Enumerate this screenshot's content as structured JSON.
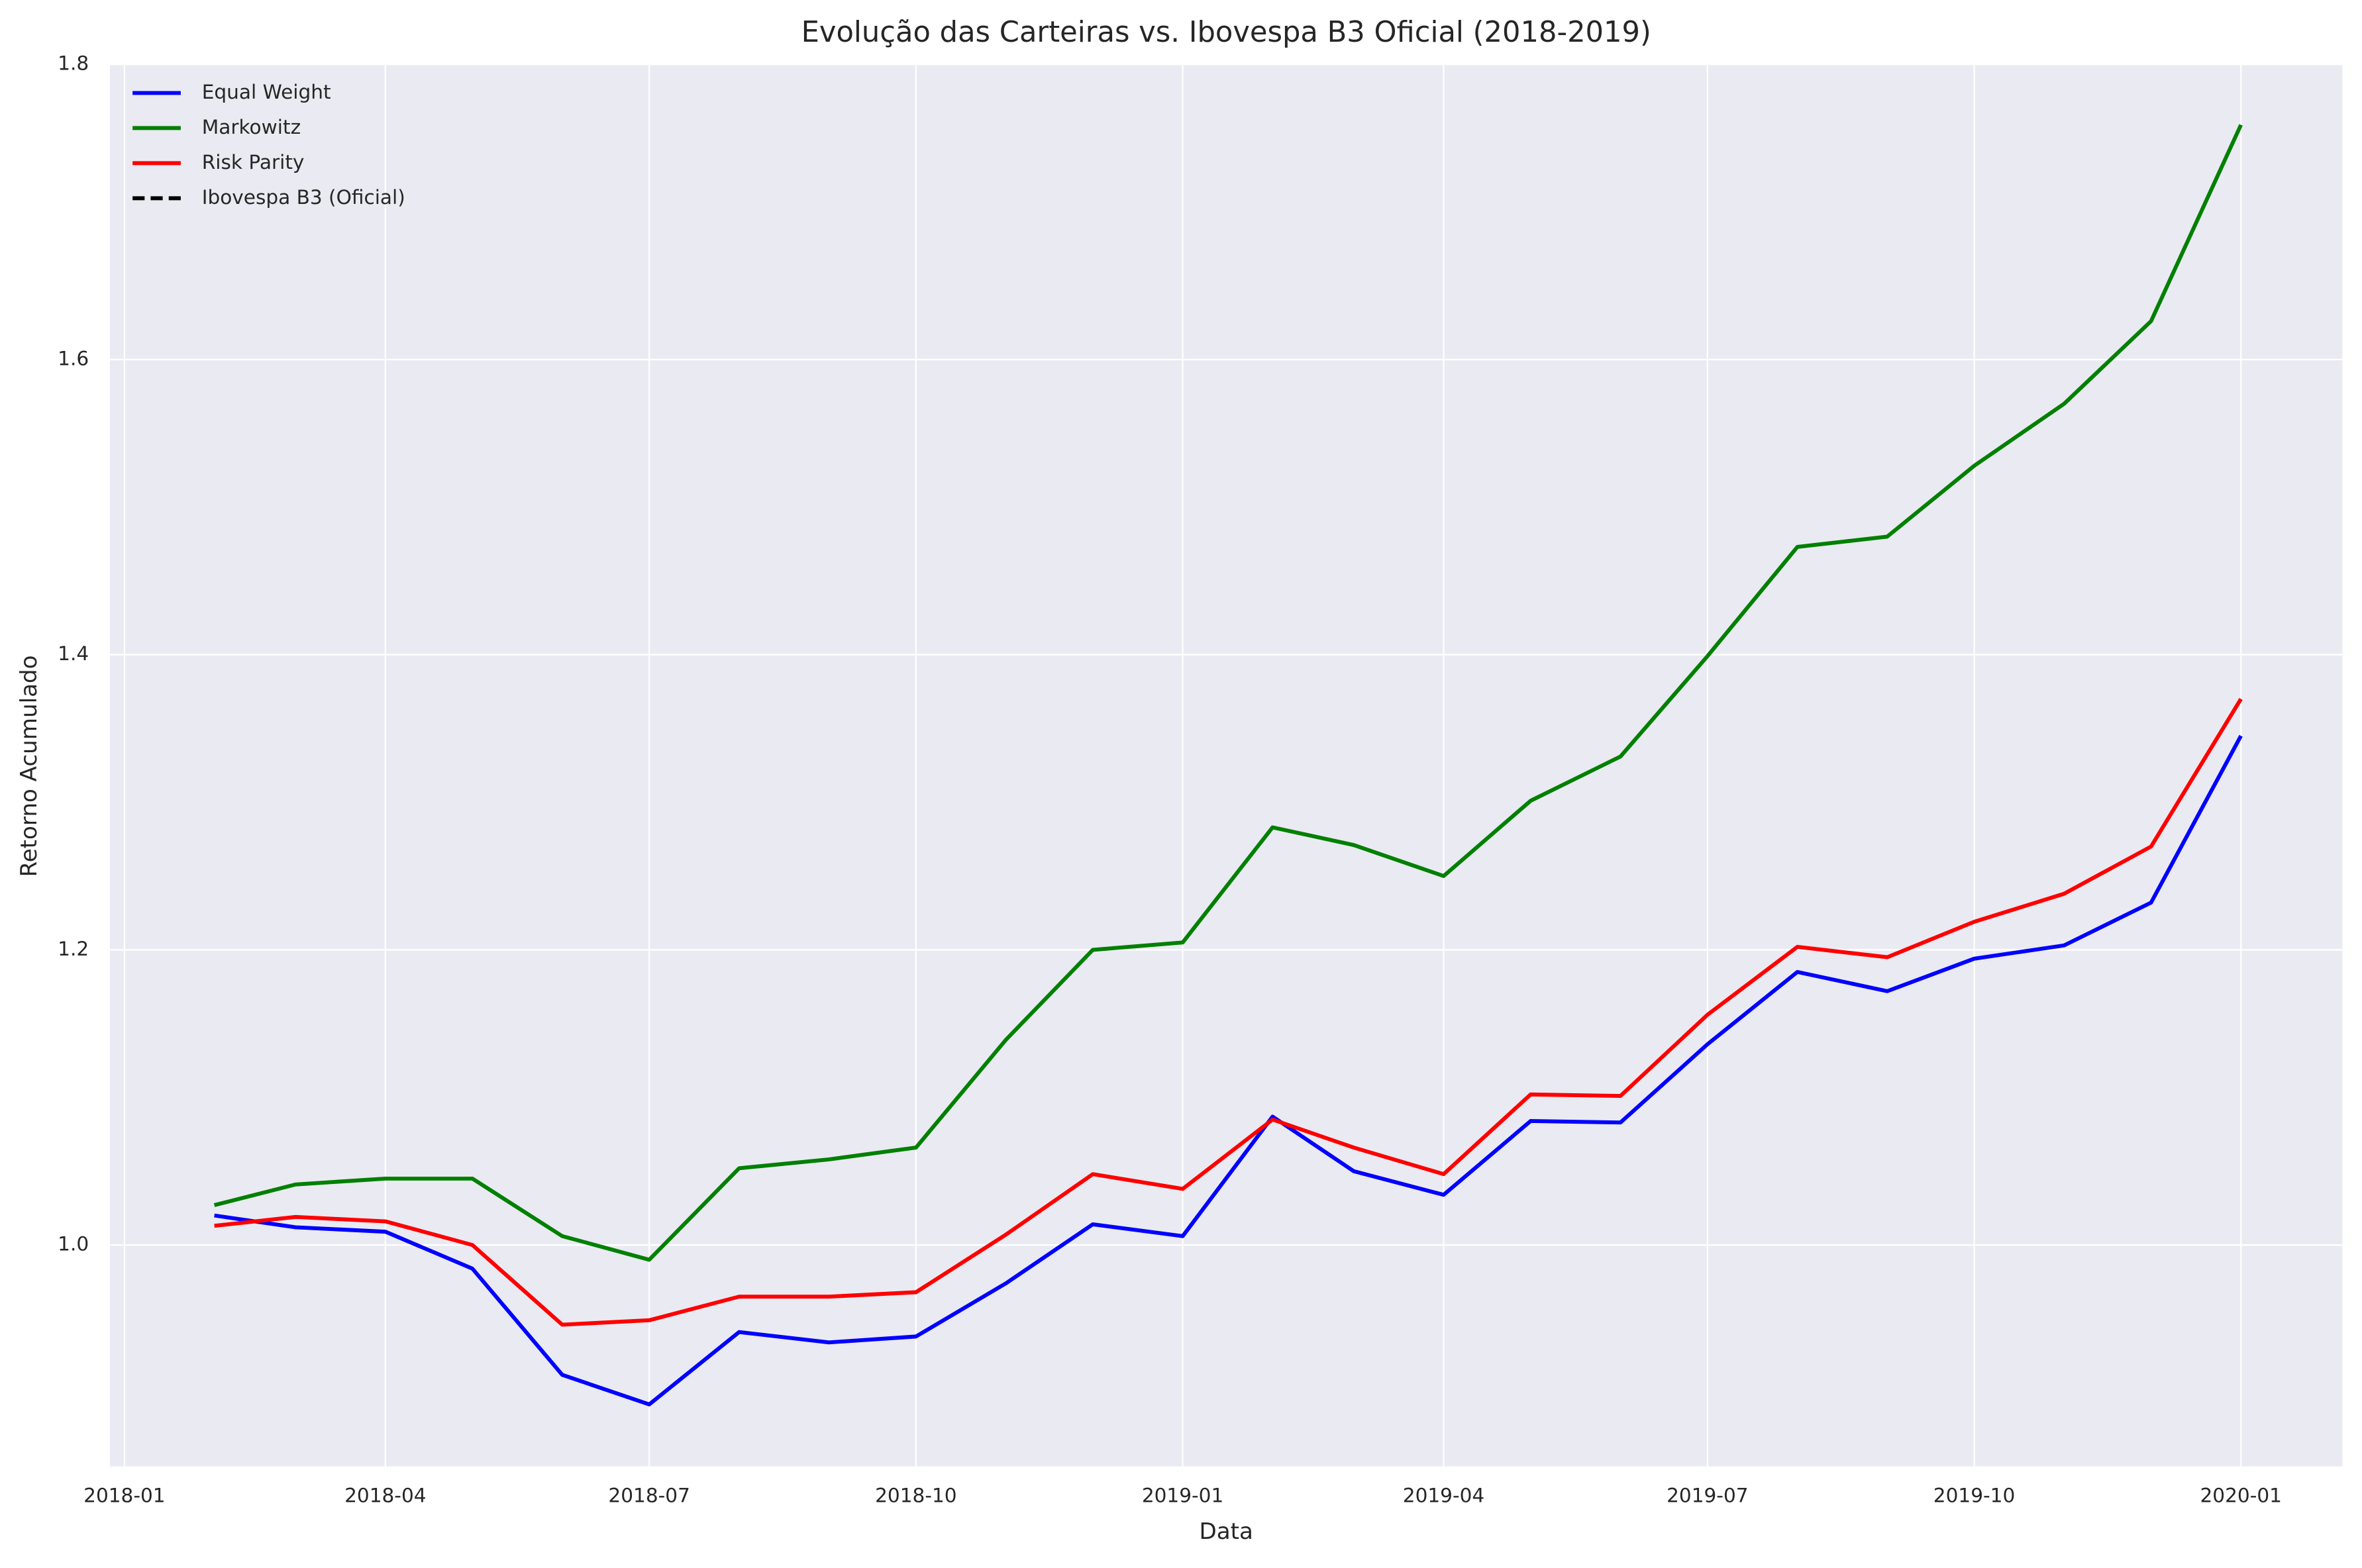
{
  "chart_data": {
    "type": "line",
    "title": "Evolução das Carteiras vs. Ibovespa B3 Oficial (2018-2019)",
    "xlabel": "Data",
    "ylabel": "Retorno Acumulado",
    "x": [
      "2018-02",
      "2018-03",
      "2018-04",
      "2018-05",
      "2018-06",
      "2018-07",
      "2018-08",
      "2018-09",
      "2018-10",
      "2018-11",
      "2018-12",
      "2019-01",
      "2019-02",
      "2019-03",
      "2019-04",
      "2019-05",
      "2019-06",
      "2019-07",
      "2019-08",
      "2019-09",
      "2019-10",
      "2019-11",
      "2019-12",
      "2020-01"
    ],
    "series": [
      {
        "name": "Equal Weight",
        "color": "#0000ff",
        "values": [
          1.02,
          1.012,
          1.009,
          0.984,
          0.912,
          0.892,
          0.941,
          0.934,
          0.938,
          0.974,
          1.014,
          1.006,
          1.087,
          1.05,
          1.034,
          1.084,
          1.083,
          1.136,
          1.185,
          1.172,
          1.194,
          1.203,
          1.232,
          1.345
        ]
      },
      {
        "name": "Markowitz",
        "color": "#008000",
        "values": [
          1.027,
          1.041,
          1.045,
          1.045,
          1.006,
          0.99,
          1.052,
          1.058,
          1.066,
          1.139,
          1.2,
          1.205,
          1.283,
          1.271,
          1.25,
          1.301,
          1.331,
          1.399,
          1.473,
          1.48,
          1.528,
          1.57,
          1.626,
          1.759
        ]
      },
      {
        "name": "Risk Parity",
        "color": "#ff0000",
        "values": [
          1.013,
          1.019,
          1.016,
          1.0,
          0.946,
          0.949,
          0.965,
          0.965,
          0.968,
          1.007,
          1.048,
          1.038,
          1.085,
          1.066,
          1.048,
          1.102,
          1.101,
          1.156,
          1.202,
          1.195,
          1.219,
          1.238,
          1.27,
          1.37
        ]
      },
      {
        "name": "Ibovespa B3 (Oficial)",
        "color": "#000000",
        "dashed": true,
        "values": [
          null,
          null,
          null,
          null,
          null,
          null,
          null,
          null,
          null,
          null,
          null,
          null,
          null,
          null,
          null,
          null,
          null,
          null,
          null,
          null,
          null,
          null,
          null,
          null
        ]
      }
    ],
    "xlim": [
      "2017-12-27",
      "2020-02-05"
    ],
    "xticks": [
      "2018-01",
      "2018-04",
      "2018-07",
      "2018-10",
      "2019-01",
      "2019-04",
      "2019-07",
      "2019-10",
      "2020-01"
    ],
    "ylim": [
      0.85,
      1.8
    ],
    "yticks": [
      {
        "value": 1,
        "label": "1.0"
      },
      1.2,
      1.4,
      1.6,
      1.8
    ],
    "grid": true,
    "legend": "upper left"
  }
}
